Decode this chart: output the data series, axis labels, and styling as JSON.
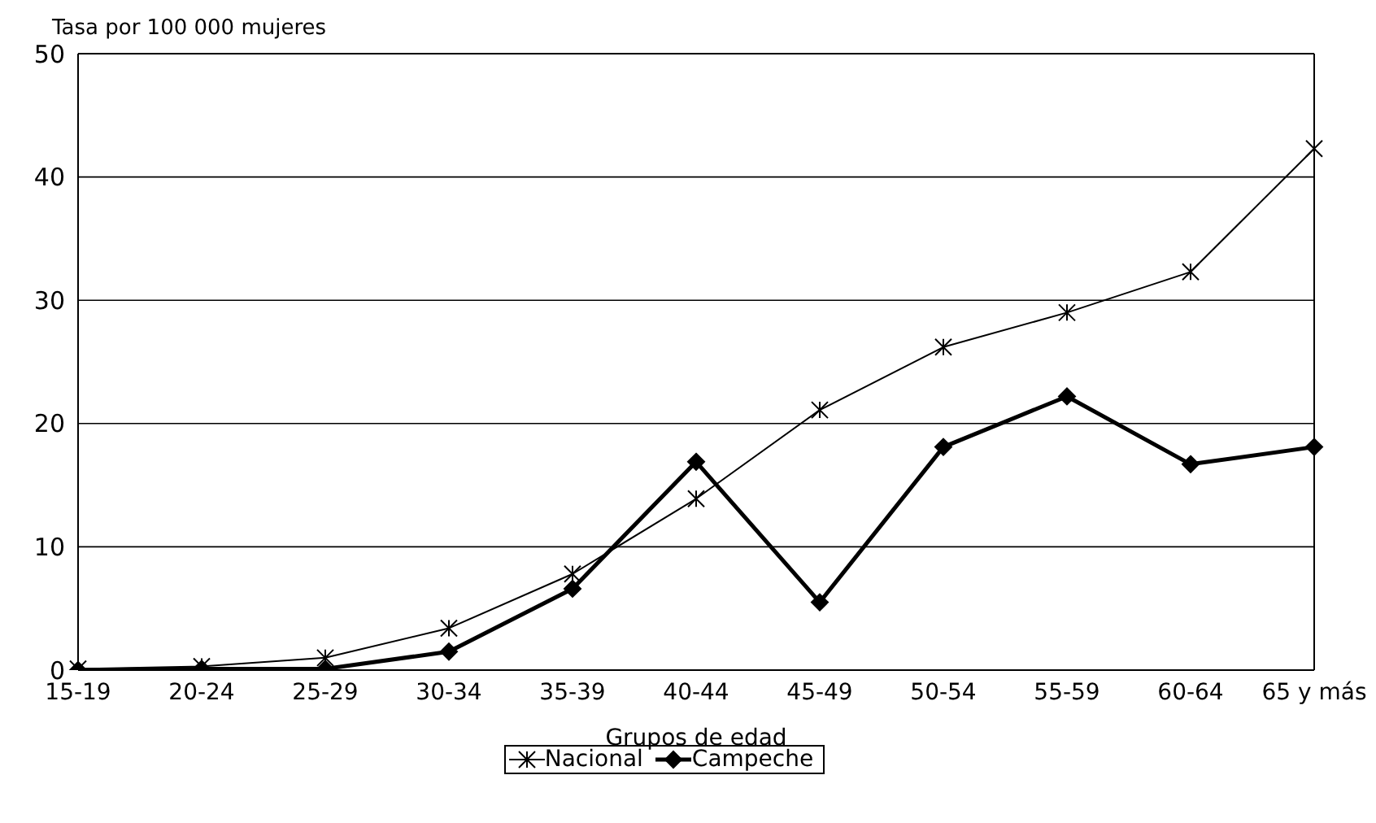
{
  "chart_data": {
    "type": "line",
    "ylabel": "Tasa por 100 000 mujeres",
    "xlabel": "Grupos de edad",
    "categories": [
      "15-19",
      "20-24",
      "25-29",
      "30-34",
      "35-39",
      "40-44",
      "45-49",
      "50-54",
      "55-59",
      "60-64",
      "65 y más"
    ],
    "series": [
      {
        "name": "Nacional",
        "color": "#000000",
        "marker": "cross",
        "values": [
          0.1,
          0.3,
          1.0,
          3.4,
          7.8,
          13.9,
          21.1,
          26.2,
          29.0,
          32.3,
          42.3
        ]
      },
      {
        "name": "Campeche",
        "color": "#000000",
        "marker": "diamond",
        "values": [
          0.0,
          0.1,
          0.1,
          1.5,
          6.6,
          16.9,
          5.5,
          18.1,
          22.2,
          16.7,
          18.1
        ]
      }
    ],
    "ylim": [
      0,
      50
    ],
    "yticks": [
      0,
      10,
      20,
      30,
      40,
      50
    ],
    "grid": "y",
    "legend": "bottom"
  }
}
